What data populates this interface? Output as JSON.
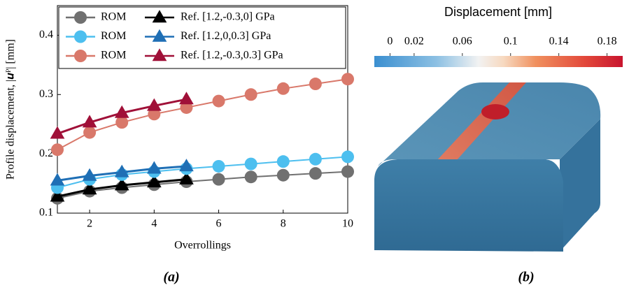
{
  "chart_data": {
    "type": "line",
    "y_label": "Profile displacement, |𝒖ᴾ| [mm]",
    "x_label": "Overrollings",
    "x": [
      1,
      2,
      3,
      4,
      5,
      6,
      7,
      8,
      9,
      10
    ],
    "series": [
      {
        "name": "ROM",
        "color": "#707070",
        "marker": "circle",
        "values": [
          0.125,
          0.137,
          0.143,
          0.148,
          0.153,
          0.157,
          0.161,
          0.164,
          0.167,
          0.17
        ]
      },
      {
        "name": "Ref. [1.2,-0.3,0] GPa",
        "color": "#000000",
        "marker": "triangle",
        "values": [
          0.128,
          0.14,
          0.147,
          0.152,
          0.157,
          null,
          null,
          null,
          null,
          null
        ]
      },
      {
        "name": "ROM",
        "color": "#4dbfef",
        "marker": "circle",
        "values": [
          0.143,
          0.157,
          0.165,
          0.17,
          0.175,
          0.179,
          0.183,
          0.187,
          0.191,
          0.195
        ]
      },
      {
        "name": "Ref. [1.2,0,0.3] GPa",
        "color": "#1f6fb5",
        "marker": "triangle",
        "values": [
          0.155,
          0.163,
          0.169,
          0.175,
          0.179,
          null,
          null,
          null,
          null,
          null
        ]
      },
      {
        "name": "ROM",
        "color": "#d9786a",
        "marker": "circle",
        "values": [
          0.207,
          0.236,
          0.253,
          0.267,
          0.278,
          0.289,
          0.3,
          0.31,
          0.318,
          0.326
        ]
      },
      {
        "name": "Ref. [1.2,-0.3,0.3] GPa",
        "color": "#a01038",
        "marker": "triangle",
        "values": [
          0.234,
          0.253,
          0.269,
          0.281,
          0.292,
          null,
          null,
          null,
          null,
          null
        ]
      }
    ],
    "xlim": [
      1,
      10
    ],
    "xticks": [
      2,
      4,
      6,
      8,
      10
    ],
    "ylim": [
      0.1,
      0.45
    ],
    "yticks": [
      0.1,
      0.2,
      0.3,
      0.4
    ],
    "grid": false,
    "legend": "top"
  },
  "colorbar": {
    "title": "Displacement [mm]",
    "lim": [
      -0.013,
      0.193
    ],
    "ticks": [
      0,
      0.02,
      0.06,
      0.1,
      0.14,
      0.18
    ]
  },
  "captions": [
    "(a)",
    "(b)"
  ]
}
